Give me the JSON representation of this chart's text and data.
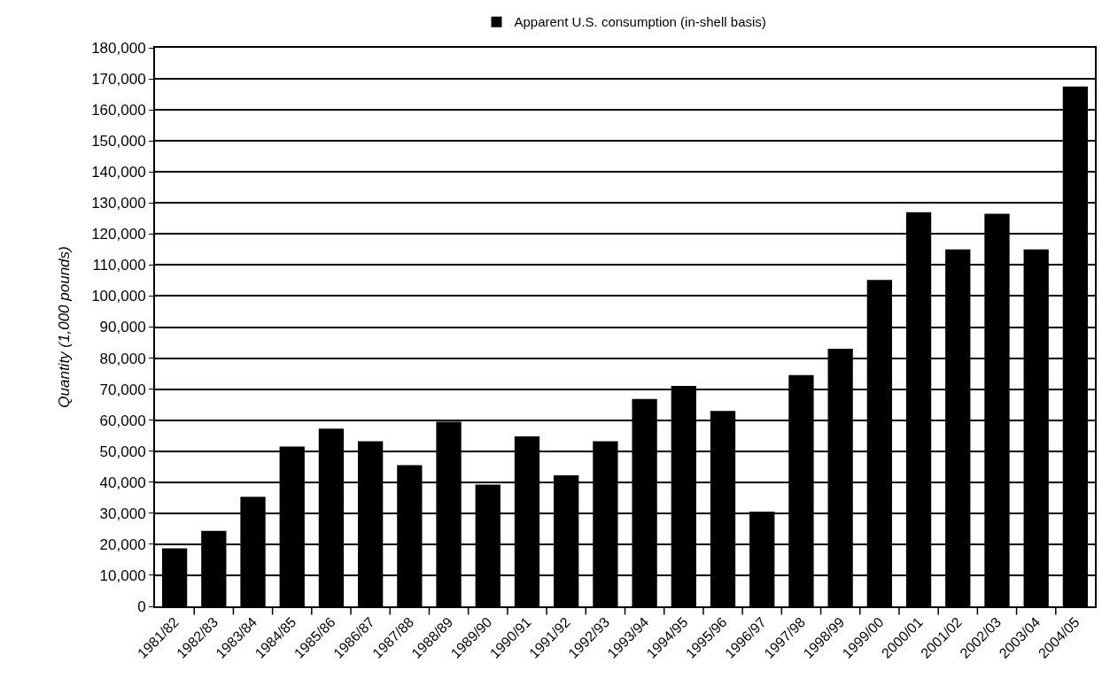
{
  "chart_data": {
    "type": "bar",
    "ylabel": "Quantity (1,000 pounds)",
    "categories": [
      "1981/82",
      "1982/83",
      "1983/84",
      "1984/85",
      "1985/86",
      "1986/87",
      "1987/88",
      "1988/89",
      "1989/90",
      "1990/91",
      "1991/92",
      "1992/93",
      "1993/94",
      "1994/95",
      "1995/96",
      "1996/97",
      "1997/98",
      "1998/99",
      "1999/00",
      "2000/01",
      "2001/02",
      "2002/03",
      "2003/04",
      "2004/05"
    ],
    "series": [
      {
        "name": "Apparent U.S. consumption (in-shell basis)",
        "color": "#000000",
        "values": [
          18700,
          24300,
          35300,
          51500,
          57300,
          53200,
          45500,
          59500,
          39200,
          54800,
          42200,
          53200,
          66800,
          71000,
          63000,
          30500,
          74500,
          83000,
          105200,
          127000,
          115000,
          126500,
          115000,
          167500
        ]
      }
    ],
    "ylim": [
      0,
      180000
    ],
    "yticks": [
      {
        "value": 0,
        "label": "0"
      },
      {
        "value": 10000,
        "label": "10,000"
      },
      {
        "value": 20000,
        "label": "20,000"
      },
      {
        "value": 30000,
        "label": "30,000"
      },
      {
        "value": 40000,
        "label": "40,000"
      },
      {
        "value": 50000,
        "label": "50,000"
      },
      {
        "value": 60000,
        "label": "60,000"
      },
      {
        "value": 70000,
        "label": "70,000"
      },
      {
        "value": 80000,
        "label": "80,000"
      },
      {
        "value": 90000,
        "label": "90,000"
      },
      {
        "value": 100000,
        "label": "100,000"
      },
      {
        "value": 110000,
        "label": "110,000"
      },
      {
        "value": 120000,
        "label": "120,000"
      },
      {
        "value": 130000,
        "label": "130,000"
      },
      {
        "value": 140000,
        "label": "140,000"
      },
      {
        "value": 150000,
        "label": "150,000"
      },
      {
        "value": 160000,
        "label": "160,000"
      },
      {
        "value": 170000,
        "label": "170,000"
      },
      {
        "value": 180000,
        "label": "180,000"
      }
    ],
    "grid": "y",
    "legend": "top"
  }
}
